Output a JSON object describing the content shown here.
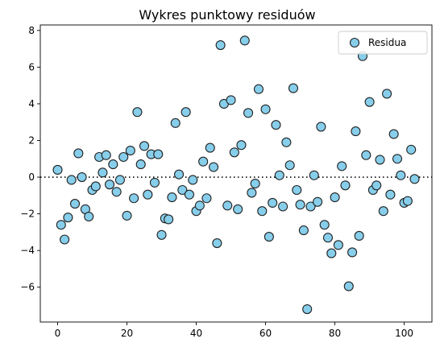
{
  "chart_data": {
    "type": "scatter",
    "title": "Wykres punktowy residuów",
    "xlabel": "",
    "ylabel": "",
    "xlim": [
      -5,
      108
    ],
    "ylim": [
      -7.9,
      8.3
    ],
    "x_ticks": [
      0,
      20,
      40,
      60,
      80,
      100
    ],
    "y_ticks": [
      -6,
      -4,
      -2,
      0,
      2,
      4,
      6,
      8
    ],
    "legend": {
      "label": "Residua",
      "position": "top-right"
    },
    "reference_line": {
      "y": 0,
      "style": "dotted",
      "color": "#000000"
    },
    "marker": {
      "fill": "#87CEEB",
      "edge": "#222222"
    },
    "series": [
      {
        "name": "Residua",
        "x": [
          0,
          1,
          2,
          3,
          4,
          5,
          6,
          7,
          8,
          9,
          10,
          11,
          12,
          13,
          14,
          15,
          16,
          17,
          18,
          19,
          20,
          21,
          22,
          23,
          24,
          25,
          26,
          27,
          28,
          29,
          30,
          31,
          32,
          33,
          34,
          35,
          36,
          37,
          38,
          39,
          40,
          41,
          42,
          43,
          44,
          45,
          46,
          47,
          48,
          49,
          50,
          51,
          52,
          53,
          54,
          55,
          56,
          57,
          58,
          59,
          60,
          61,
          62,
          63,
          64,
          65,
          66,
          67,
          68,
          69,
          70,
          71,
          72,
          73,
          74,
          75,
          76,
          77,
          78,
          79,
          80,
          81,
          82,
          83,
          84,
          85,
          86,
          87,
          88,
          89,
          90,
          91,
          92,
          93,
          94,
          95,
          96,
          97,
          98,
          99,
          100,
          101,
          102,
          103
        ],
        "y": [
          0.4,
          -2.6,
          -3.4,
          -2.2,
          -0.15,
          -1.45,
          1.3,
          0.0,
          -1.75,
          -2.15,
          -0.7,
          -0.5,
          1.1,
          0.25,
          1.2,
          -0.4,
          0.7,
          -0.8,
          -0.15,
          1.1,
          -2.1,
          1.45,
          -1.15,
          3.55,
          0.7,
          1.7,
          -0.95,
          1.25,
          -0.3,
          1.25,
          -3.15,
          -2.25,
          -2.3,
          -1.1,
          2.95,
          0.15,
          -0.7,
          3.55,
          -0.95,
          -0.15,
          -1.85,
          -1.55,
          0.85,
          -1.15,
          1.6,
          0.55,
          -3.6,
          7.2,
          4.0,
          -1.55,
          4.2,
          1.35,
          -1.75,
          1.75,
          7.45,
          3.5,
          -0.85,
          -0.35,
          4.8,
          -1.85,
          3.7,
          -3.25,
          -1.4,
          2.85,
          0.1,
          -1.6,
          1.9,
          0.65,
          4.85,
          -0.7,
          -1.5,
          -2.9,
          -7.2,
          -1.6,
          0.1,
          -1.35,
          2.75,
          -2.6,
          -3.3,
          -4.15,
          -1.1,
          -3.7,
          0.6,
          -0.45,
          -5.95,
          -4.1,
          2.5,
          -3.2,
          6.6,
          1.2,
          4.1,
          -0.7,
          -0.45,
          0.95,
          -1.85,
          4.55,
          -0.95,
          2.35,
          1.0,
          0.1,
          -1.4,
          -1.3,
          1.5,
          -0.1
        ]
      }
    ]
  }
}
